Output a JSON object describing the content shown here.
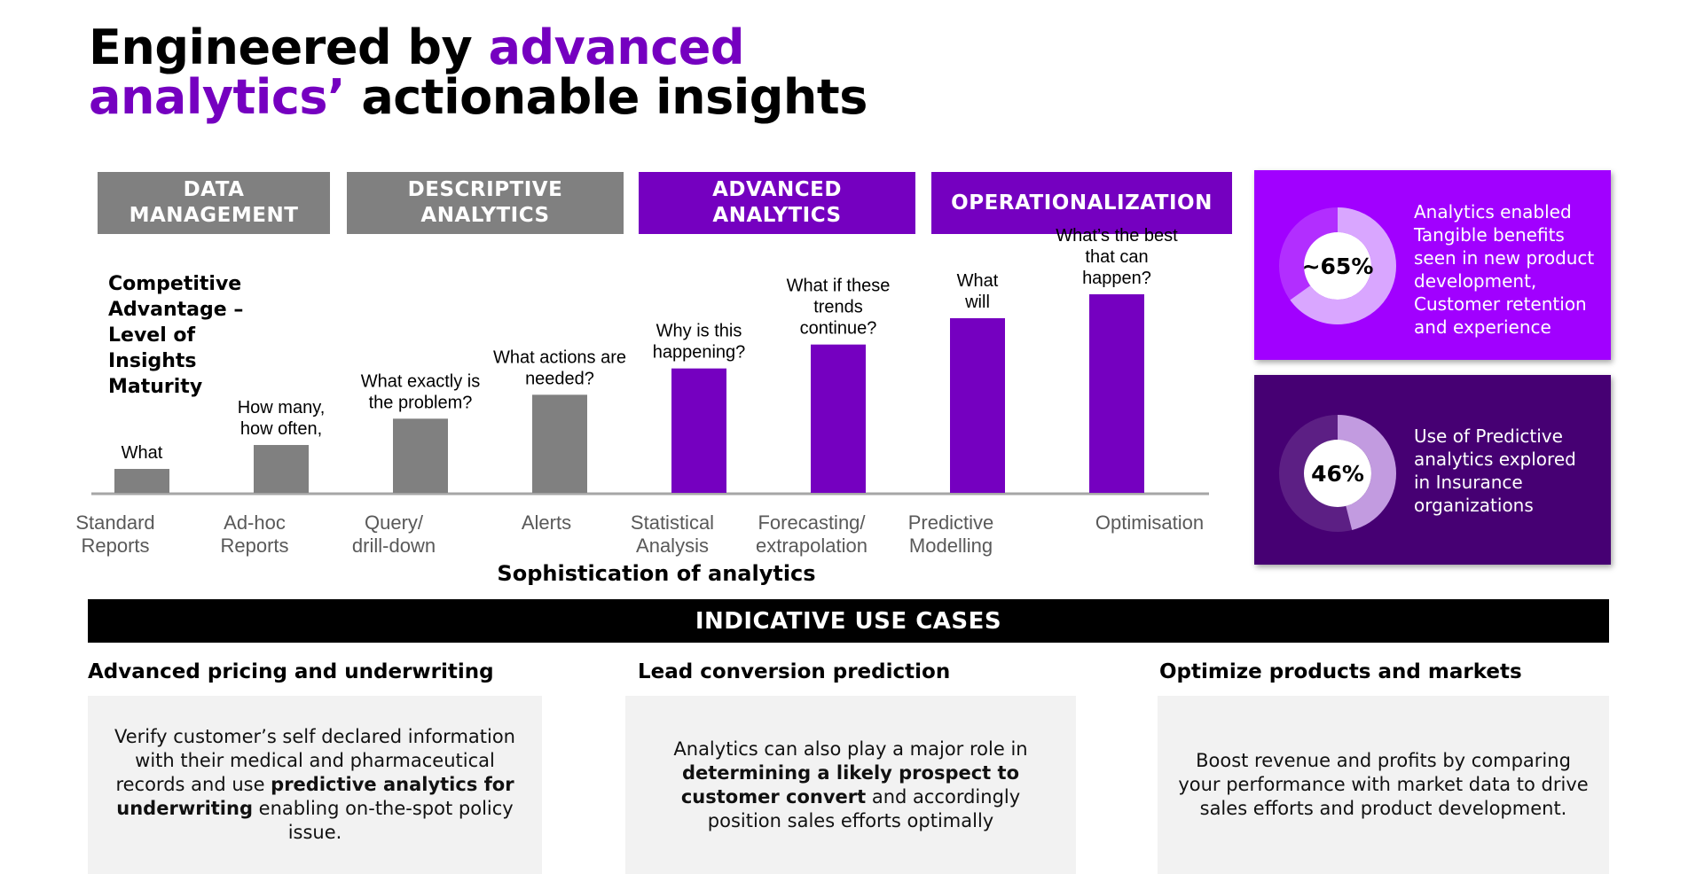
{
  "title": {
    "part1_accent": "advanced",
    "part1_pre": "Engineered by ",
    "part2_accent": "analytics’",
    "part2_post": " actionable insights"
  },
  "phases": [
    {
      "label_line1": "DATA",
      "label_line2": "MANAGEMENT"
    },
    {
      "label_line1": "DESCRIPTIVE",
      "label_line2": "ANALYTICS"
    },
    {
      "label_line1": "ADVANCED",
      "label_line2": "ANALYTICS"
    },
    {
      "label_line1": "OPERATIONALIZATION",
      "label_line2": ""
    }
  ],
  "chart_data": {
    "type": "bar",
    "ylabel": "Competitive Advantage – Level of Insights Maturity",
    "xlabel": "Sophistication of analytics",
    "ylim": [
      0,
      100
    ],
    "grid": false,
    "categories": [
      [
        "Standard",
        "Reports"
      ],
      [
        "Ad-hoc",
        "Reports"
      ],
      [
        "Query/",
        "drill-down"
      ],
      [
        "Alerts"
      ],
      [
        "Statistical",
        "Analysis"
      ],
      [
        "Forecasting/",
        "extrapolation"
      ],
      [
        "Predictive",
        "Modelling"
      ],
      [
        "Optimisation"
      ]
    ],
    "values": [
      10,
      20,
      31,
      41,
      52,
      62,
      73,
      83
    ],
    "questions": [
      [
        "What"
      ],
      [
        "How many,",
        "how often,"
      ],
      [
        "What exactly is",
        "the problem?"
      ],
      [
        "What actions are",
        "needed?"
      ],
      [
        "Why is this",
        "happening?"
      ],
      [
        "What if these",
        "trends",
        "continue?"
      ],
      [
        "What",
        "will"
      ],
      [
        "What’s the best",
        "that can",
        "happen?"
      ]
    ],
    "colors": [
      "#808080",
      "#808080",
      "#808080",
      "#808080",
      "#7500c0",
      "#7500c0",
      "#7500c0",
      "#7500c0"
    ]
  },
  "kpis": [
    {
      "value": "~65%",
      "percent": 65,
      "ring_color": "#d9a6ff",
      "lines": [
        "Analytics enabled",
        "Tangible benefits",
        "seen in new product",
        "development,",
        "Customer retention",
        "and experience"
      ]
    },
    {
      "value": "46%",
      "percent": 46,
      "ring_color": "#c29be0",
      "lines": [
        "Use of Predictive",
        "analytics explored",
        "in Insurance",
        "organizations"
      ]
    }
  ],
  "use_cases_banner": "INDICATIVE USE CASES",
  "use_cases": [
    {
      "title": "Advanced pricing and underwriting",
      "text_pre": "Verify customer’s self declared information with their medical and pharmaceutical records and use ",
      "text_bold": "predictive analytics for underwriting",
      "text_post": " enabling on-the-spot policy issue."
    },
    {
      "title": "Lead conversion prediction",
      "text_pre": "Analytics can also play a major role in ",
      "text_bold": "determining a likely prospect to customer convert",
      "text_post": " and accordingly position sales efforts optimally"
    },
    {
      "title": "Optimize products and markets",
      "text_pre": "Boost revenue and profits by comparing your performance with market data to drive sales efforts and product development.",
      "text_bold": "",
      "text_post": ""
    }
  ],
  "colors": {
    "accent": "#7500c0",
    "gray": "#808080",
    "kpi1_bg": "#a100ff",
    "kpi2_bg": "#460073"
  }
}
